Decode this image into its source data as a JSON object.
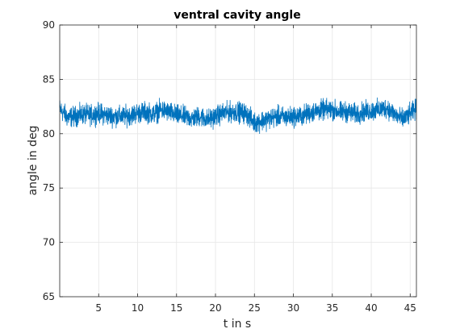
{
  "chart_data": {
    "type": "line",
    "title": "ventral cavity angle",
    "xlabel": "t in s",
    "ylabel": "angle in deg",
    "xlim": [
      0,
      45.8
    ],
    "ylim": [
      65,
      90
    ],
    "xticks": [
      5,
      10,
      15,
      20,
      25,
      30,
      35,
      40,
      45
    ],
    "yticks": [
      65,
      70,
      75,
      80,
      85,
      90
    ],
    "grid": true,
    "legend": null,
    "colors": {
      "line": "#0072BD",
      "grid": "#e6e6e6",
      "axis": "#262626"
    },
    "series": [
      {
        "x": [
          0,
          1,
          2,
          3,
          4,
          5,
          6,
          7,
          8,
          9,
          10,
          11,
          12,
          13,
          14,
          15,
          16,
          17,
          18,
          19,
          20,
          21,
          22,
          23,
          24,
          25,
          26,
          27,
          28,
          29,
          30,
          31,
          32,
          33,
          34,
          35,
          36,
          37,
          38,
          39,
          40,
          41,
          42,
          43,
          44,
          45,
          45.8
        ],
        "y": [
          82.3,
          81.5,
          81.6,
          81.8,
          81.7,
          81.9,
          81.7,
          81.6,
          81.6,
          81.7,
          81.9,
          82.0,
          81.8,
          82.2,
          82.0,
          81.7,
          81.6,
          81.4,
          81.6,
          81.3,
          81.6,
          81.9,
          82.0,
          82.0,
          81.8,
          81.0,
          81.2,
          81.4,
          81.6,
          81.5,
          81.6,
          81.6,
          81.9,
          82.1,
          82.2,
          82.2,
          82.0,
          82.0,
          81.8,
          82.0,
          82.1,
          82.2,
          82.4,
          81.8,
          81.3,
          81.8,
          82.3
        ],
        "noise": 0.65
      }
    ]
  }
}
